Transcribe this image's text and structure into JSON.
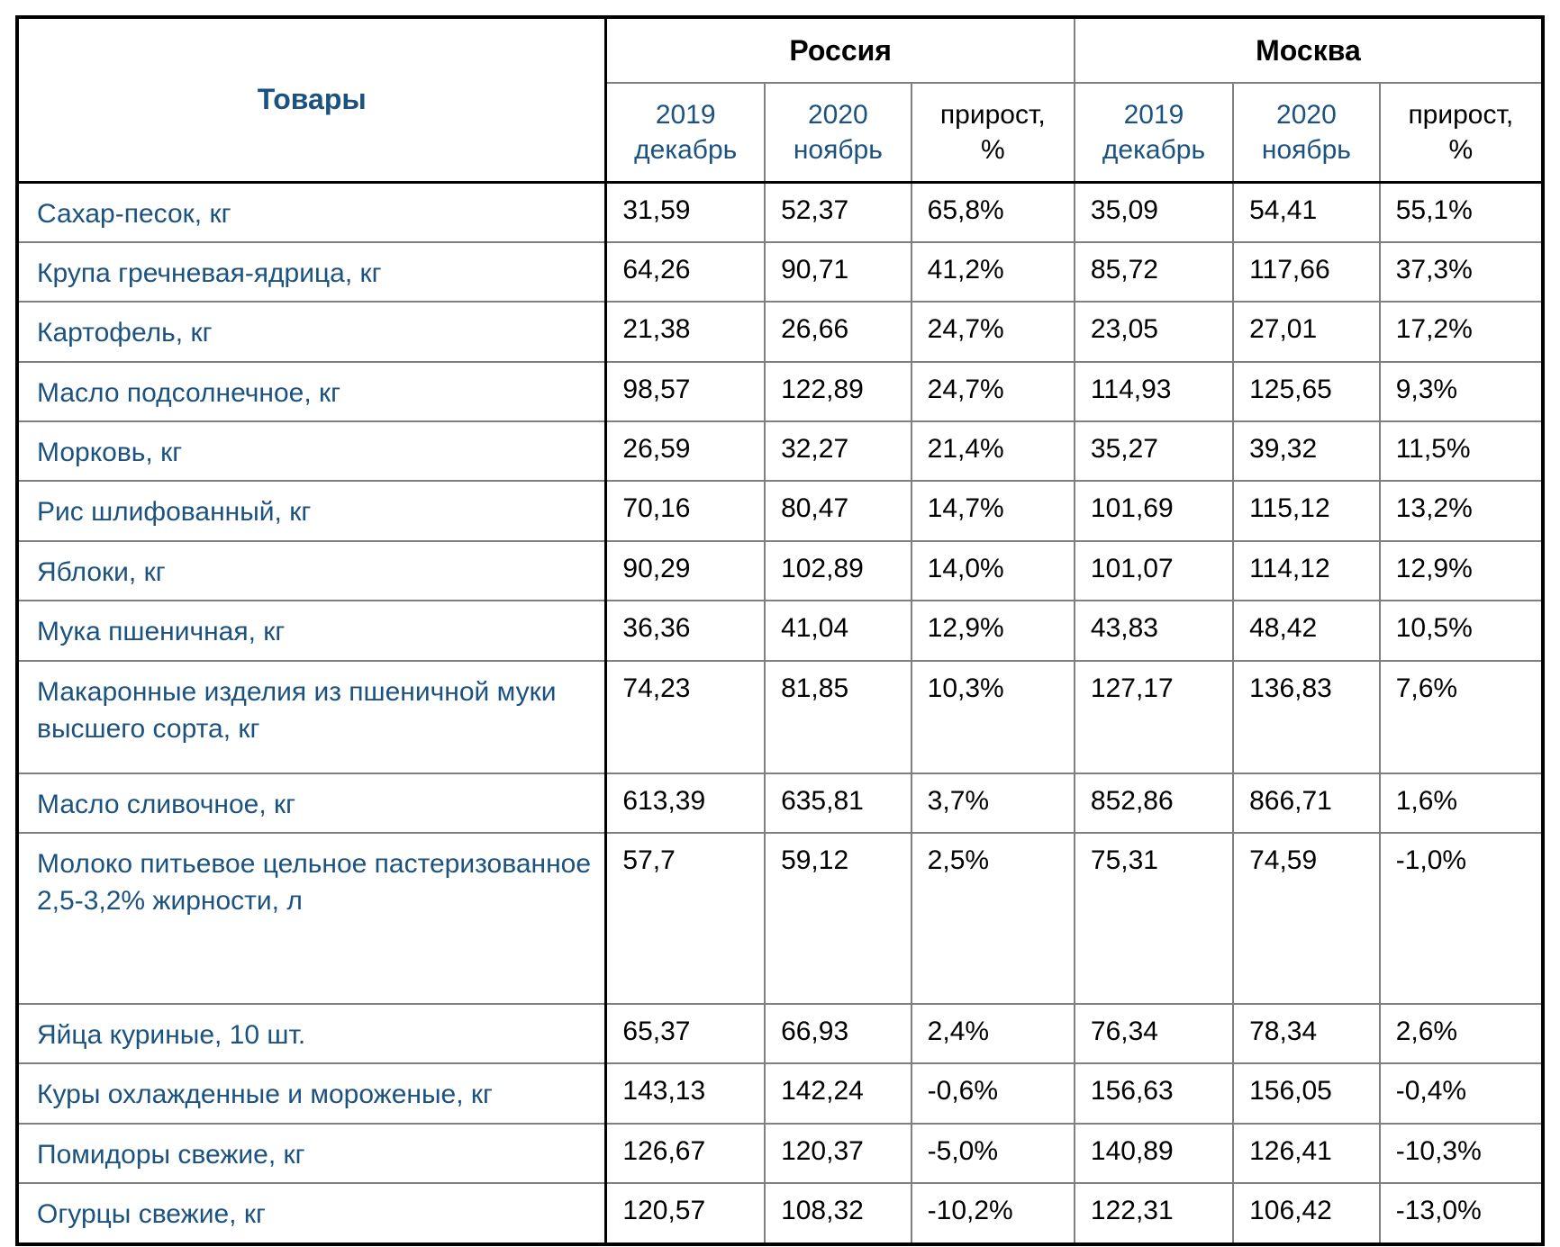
{
  "colors": {
    "accent_blue": "#1C5280",
    "grid_gray": "#7f7f7f",
    "border_black": "#000000",
    "value_black": "#000000"
  },
  "table": {
    "products_header": "Товары",
    "group_headers": [
      "Россия",
      "Москва"
    ],
    "subheaders": [
      {
        "line1": "2019",
        "line2": "декабрь",
        "tone": "blue"
      },
      {
        "line1": "2020",
        "line2": "ноябрь",
        "tone": "blue"
      },
      {
        "line1": "прирост,",
        "line2": "%",
        "tone": "black"
      }
    ]
  },
  "chart_data": {
    "type": "table",
    "title": "",
    "columns": [
      "Товары",
      "Россия — 2019 декабрь",
      "Россия — 2020 ноябрь",
      "Россия — прирост, %",
      "Москва — 2019 декабрь",
      "Москва — 2020 ноябрь",
      "Москва — прирост, %"
    ],
    "rows": [
      {
        "product": "Сахар-песок, кг",
        "values": [
          "31,59",
          "52,37",
          "65,8%",
          "35,09",
          "54,41",
          "55,1%"
        ]
      },
      {
        "product": "Крупа гречневая-ядрица, кг",
        "values": [
          "64,26",
          "90,71",
          "41,2%",
          "85,72",
          "117,66",
          "37,3%"
        ]
      },
      {
        "product": "Картофель, кг",
        "values": [
          "21,38",
          "26,66",
          "24,7%",
          "23,05",
          "27,01",
          "17,2%"
        ]
      },
      {
        "product": "Масло подсолнечное, кг",
        "values": [
          "98,57",
          "122,89",
          "24,7%",
          "114,93",
          "125,65",
          "9,3%"
        ]
      },
      {
        "product": "Морковь, кг",
        "values": [
          "26,59",
          "32,27",
          "21,4%",
          "35,27",
          "39,32",
          "11,5%"
        ]
      },
      {
        "product": "Рис шлифованный, кг",
        "values": [
          "70,16",
          "80,47",
          "14,7%",
          "101,69",
          "115,12",
          "13,2%"
        ]
      },
      {
        "product": "Яблоки, кг",
        "values": [
          "90,29",
          "102,89",
          "14,0%",
          "101,07",
          "114,12",
          "12,9%"
        ]
      },
      {
        "product": "Мука пшеничная, кг",
        "values": [
          "36,36",
          "41,04",
          "12,9%",
          "43,83",
          "48,42",
          "10,5%"
        ]
      },
      {
        "product": "Макаронные изделия из пшеничной муки высшего сорта, кг",
        "values": [
          "74,23",
          "81,85",
          "10,3%",
          "127,17",
          "136,83",
          "7,6%"
        ]
      },
      {
        "product": "Масло сливочное, кг",
        "values": [
          "613,39",
          "635,81",
          "3,7%",
          "852,86",
          "866,71",
          "1,6%"
        ]
      },
      {
        "product": "Молоко питьевое цельное пастеризованное 2,5-3,2% жирности, л",
        "values": [
          "57,7",
          "59,12",
          "2,5%",
          "75,31",
          "74,59",
          "-1,0%"
        ]
      },
      {
        "product": "Яйца куриные, 10 шт.",
        "values": [
          "65,37",
          "66,93",
          "2,4%",
          "76,34",
          "78,34",
          "2,6%"
        ]
      },
      {
        "product": "Куры охлажденные и мороженые, кг",
        "values": [
          "143,13",
          "142,24",
          "-0,6%",
          "156,63",
          "156,05",
          "-0,4%"
        ]
      },
      {
        "product": "Помидоры свежие, кг",
        "values": [
          "126,67",
          "120,37",
          "-5,0%",
          "140,89",
          "126,41",
          "-10,3%"
        ]
      },
      {
        "product": "Огурцы свежие, кг",
        "values": [
          "120,57",
          "108,32",
          "-10,2%",
          "122,31",
          "106,42",
          "-13,0%"
        ]
      }
    ]
  }
}
